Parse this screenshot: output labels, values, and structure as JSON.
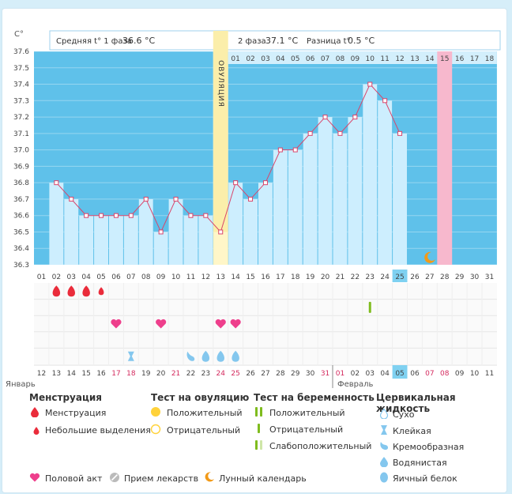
{
  "unit": "C°",
  "header": {
    "phase1_label": "Средняя t° 1 фаза",
    "phase1_value": "36.6 °C",
    "phase2_label": "2 фаза",
    "phase2_value": "37.1 °C",
    "diff_label": "Разница t°",
    "diff_value": "0.5 °C"
  },
  "ovulation_label": "ОВУЛЯЦИЯ",
  "month_left": "Январь",
  "month_right": "Февраль",
  "chart_data": {
    "type": "line",
    "ylim": [
      36.3,
      37.6
    ],
    "y_ticks": [
      "37.6",
      "37.5",
      "37.4",
      "37.3",
      "37.2",
      "37.1",
      "37.0",
      "36.9",
      "36.8",
      "36.7",
      "36.6",
      "36.5",
      "36.4",
      "36.3"
    ],
    "cycle_days": [
      "01",
      "02",
      "03",
      "04",
      "05",
      "06",
      "07",
      "08",
      "09",
      "10",
      "11",
      "12",
      "13",
      "14",
      "15",
      "16",
      "17",
      "18",
      "19",
      "20",
      "21",
      "22",
      "23",
      "24",
      "25",
      "26",
      "27",
      "28",
      "29",
      "30",
      "31"
    ],
    "phase2_days": [
      "01",
      "02",
      "03",
      "04",
      "05",
      "06",
      "07",
      "08",
      "09",
      "10",
      "11",
      "12",
      "13",
      "14",
      "15",
      "16",
      "17",
      "18"
    ],
    "dates": [
      "12",
      "13",
      "14",
      "15",
      "16",
      "17",
      "18",
      "19",
      "20",
      "21",
      "22",
      "23",
      "24",
      "25",
      "26",
      "27",
      "28",
      "29",
      "30",
      "31",
      "01",
      "02",
      "03",
      "04",
      "05",
      "06",
      "07",
      "08",
      "09",
      "10",
      "11"
    ],
    "temperatures": [
      null,
      36.8,
      36.7,
      36.6,
      36.6,
      36.6,
      36.6,
      36.7,
      36.5,
      36.7,
      36.6,
      36.6,
      36.5,
      36.8,
      36.7,
      36.8,
      37.0,
      37.0,
      37.1,
      37.2,
      37.1,
      37.2,
      37.4,
      37.3,
      37.1,
      null,
      null,
      null,
      null,
      null,
      null
    ],
    "ovulation_day": 13,
    "today_day": 25,
    "highlight_day": 28
  },
  "markers": {
    "menstruation_days": [
      2,
      3,
      4
    ],
    "small_discharge_days": [
      5
    ],
    "intercourse_days": [
      6,
      9,
      13,
      14
    ],
    "sticky_days": [
      7
    ],
    "creamy_days": [
      11
    ],
    "watery_days": [
      12,
      13,
      14
    ],
    "pregnancy_weak_days": [
      23
    ],
    "moon_day": 27,
    "red_date_days": [
      6,
      7,
      10,
      13,
      14,
      20,
      21,
      27,
      28
    ]
  },
  "legend": {
    "menstruation_title": "Менструация",
    "menstruation": "Менструация",
    "small_discharge": "Небольшие выделения",
    "ovulation_test_title": "Тест на овуляцию",
    "positive": "Положительный",
    "negative": "Отрицательный",
    "pregnancy_test_title": "Тест на беременность",
    "preg_positive": "Положительный",
    "preg_negative": "Отрицательный",
    "preg_weak": "Слабоположительный",
    "cervical_title": "Цервикальная жидкость",
    "dry": "Сухо",
    "sticky": "Клейкая",
    "creamy": "Кремообразная",
    "watery": "Водянистая",
    "egg_white": "Яичный белок",
    "intercourse": "Половой акт",
    "medication": "Прием лекарств",
    "moon": "Лунный календарь"
  },
  "colors": {
    "phase1_bg": "#5fc1ea",
    "phase2_bg": "#d3effc",
    "bar": "#cdeefe",
    "line": "#d9456b",
    "ovulation": "#fbeeaa",
    "highlight": "#f7b8cd",
    "heart": "#ee3f8c",
    "drop_red": "#ea2c3b",
    "drop_blue": "#84c7ee",
    "green": "#7fbc1e",
    "sun": "#ffd23a",
    "moon": "#f29a18"
  }
}
